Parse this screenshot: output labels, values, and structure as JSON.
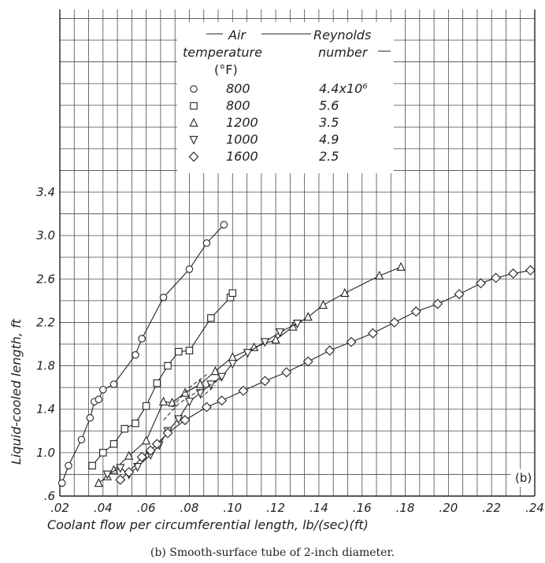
{
  "chart_data": {
    "type": "scatter",
    "panel_label": "(b)",
    "caption": "(b) Smooth-surface tube of 2-inch diameter.",
    "xlabel": "Coolant flow per circumferential length, lb/(sec)(ft)",
    "ylabel": "Liquid-cooled length, ft",
    "xlim": [
      0.02,
      0.24
    ],
    "ylim": [
      0.6,
      3.4
    ],
    "x_ticks": [
      ".02",
      ".04",
      ".06",
      ".08",
      ".10",
      ".12",
      ".14",
      ".16",
      ".18",
      ".20",
      ".22",
      ".24"
    ],
    "y_ticks": [
      ".6",
      "1.0",
      "1.4",
      "1.8",
      "2.2",
      "2.6",
      "3.0",
      "3.4"
    ],
    "grid": true,
    "legend": {
      "position": "top-center",
      "col1_header_line1": "Air",
      "col1_header_line2": "temperature",
      "col1_header_line3": "(°F)",
      "col2_header_line1": "Reynolds",
      "col2_header_line2": "number",
      "rows": [
        {
          "marker": "circle",
          "temperature": "800",
          "reynolds": "4.4x10⁶"
        },
        {
          "marker": "square",
          "temperature": "800",
          "reynolds": "5.6"
        },
        {
          "marker": "triangle-up",
          "temperature": "1200",
          "reynolds": "3.5"
        },
        {
          "marker": "triangle-down",
          "temperature": "1000",
          "reynolds": "4.9"
        },
        {
          "marker": "diamond",
          "temperature": "1600",
          "reynolds": "2.5"
        }
      ]
    },
    "series": [
      {
        "marker": "circle",
        "x": [
          0.021,
          0.024,
          0.03,
          0.034,
          0.036,
          0.038,
          0.04,
          0.045,
          0.055,
          0.058,
          0.068,
          0.08,
          0.088,
          0.096
        ],
        "y": [
          0.72,
          0.88,
          1.12,
          1.32,
          1.47,
          1.49,
          1.58,
          1.63,
          1.9,
          2.05,
          2.43,
          2.69,
          2.93,
          3.1
        ]
      },
      {
        "marker": "square",
        "x": [
          0.035,
          0.04,
          0.045,
          0.05,
          0.055,
          0.06,
          0.065,
          0.07,
          0.075,
          0.08,
          0.09,
          0.099,
          0.1
        ],
        "y": [
          0.88,
          1.0,
          1.08,
          1.22,
          1.27,
          1.43,
          1.64,
          1.8,
          1.93,
          1.94,
          2.24,
          2.43,
          2.47
        ]
      },
      {
        "marker": "triangle-up",
        "x": [
          0.038,
          0.042,
          0.045,
          0.052,
          0.06,
          0.068,
          0.072,
          0.078,
          0.085,
          0.092,
          0.1,
          0.11,
          0.12,
          0.128,
          0.135,
          0.142,
          0.152,
          0.168,
          0.178
        ],
        "y": [
          0.72,
          0.78,
          0.84,
          0.97,
          1.11,
          1.47,
          1.46,
          1.55,
          1.63,
          1.75,
          1.88,
          1.97,
          2.04,
          2.16,
          2.25,
          2.36,
          2.47,
          2.63,
          2.71
        ]
      },
      {
        "marker": "triangle-down",
        "x": [
          0.042,
          0.048,
          0.052,
          0.056,
          0.062,
          0.066,
          0.07,
          0.075,
          0.08,
          0.085,
          0.09,
          0.095,
          0.1,
          0.107,
          0.115,
          0.122,
          0.13
        ],
        "y": [
          0.8,
          0.86,
          0.8,
          0.87,
          0.98,
          1.07,
          1.2,
          1.31,
          1.47,
          1.55,
          1.63,
          1.7,
          1.82,
          1.92,
          2.02,
          2.11,
          2.19
        ]
      },
      {
        "marker": "diamond",
        "x": [
          0.048,
          0.052,
          0.058,
          0.062,
          0.065,
          0.07,
          0.078,
          0.088,
          0.095,
          0.105,
          0.115,
          0.125,
          0.135,
          0.145,
          0.155,
          0.165,
          0.175,
          0.185,
          0.195,
          0.205,
          0.215,
          0.222,
          0.23,
          0.238
        ],
        "y": [
          0.75,
          0.82,
          0.96,
          1.02,
          1.08,
          1.18,
          1.3,
          1.42,
          1.48,
          1.57,
          1.66,
          1.74,
          1.84,
          1.94,
          2.02,
          2.1,
          2.2,
          2.3,
          2.37,
          2.46,
          2.56,
          2.61,
          2.65,
          2.68
        ]
      }
    ]
  }
}
